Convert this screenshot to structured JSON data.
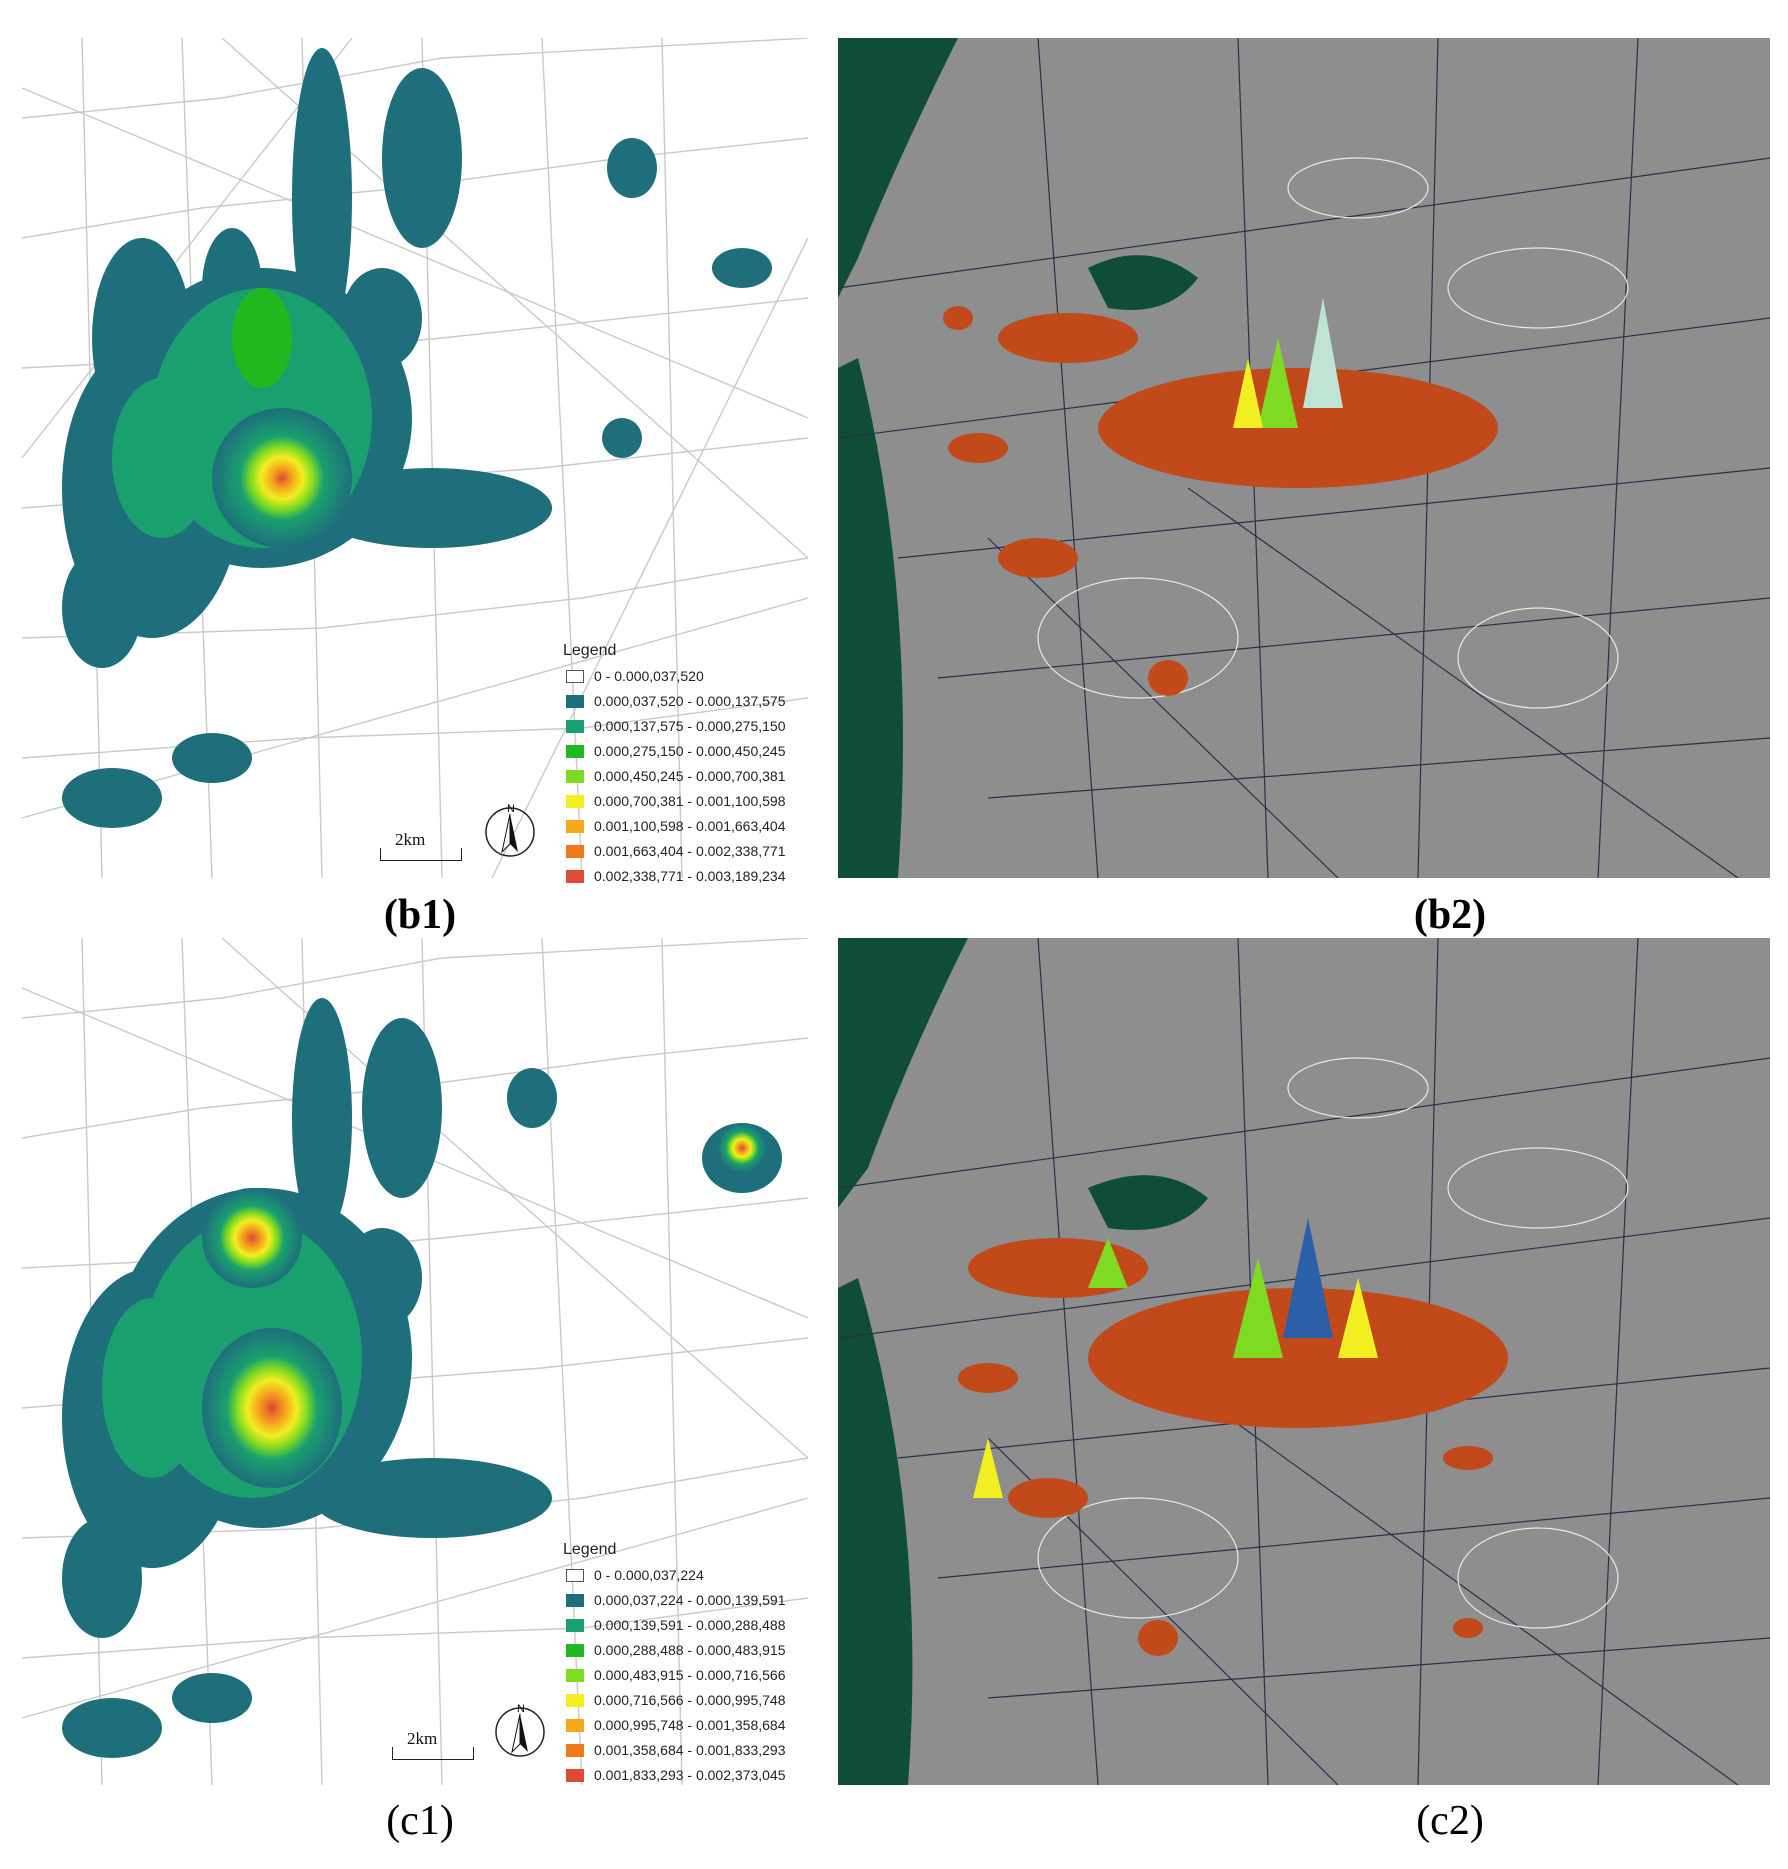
{
  "panels": [
    {
      "caption": "(b1)",
      "legend_title": "Legend",
      "legend": [
        {
          "label": "0 - 0.000,037,520",
          "color": "#ffffff"
        },
        {
          "label": "0.000,037,520  -  0.000,137,575",
          "color": "#1e6e7c"
        },
        {
          "label": "0.000,137,575  -  0.000,275,150",
          "color": "#1aa06e"
        },
        {
          "label": "0.000,275,150  -  0.000,450,245",
          "color": "#22b820"
        },
        {
          "label": "0.000,450,245  -  0.000,700,381",
          "color": "#7fdb22"
        },
        {
          "label": "0.000,700,381  -  0.001,100,598",
          "color": "#f2ee22"
        },
        {
          "label": "0.001,100,598  -  0.001,663,404",
          "color": "#f5a81c"
        },
        {
          "label": "0.001,663,404  -  0.002,338,771",
          "color": "#ef7a1c"
        },
        {
          "label": "0.002,338,771  -  0.003,189,234",
          "color": "#df4a34"
        }
      ],
      "scale_label": "2km",
      "north_label": "N"
    },
    {
      "caption": "(b2)"
    },
    {
      "caption": "(c1)",
      "legend_title": "Legend",
      "legend": [
        {
          "label": "0 - 0.000,037,224",
          "color": "#ffffff"
        },
        {
          "label": "0.000,037,224  -  0.000,139,591",
          "color": "#1e6e7c"
        },
        {
          "label": "0.000,139,591  -  0.000,288,488",
          "color": "#1aa06e"
        },
        {
          "label": "0.000,288,488  -  0.000,483,915",
          "color": "#22b820"
        },
        {
          "label": "0.000,483,915  -  0.000,716,566",
          "color": "#7fdb22"
        },
        {
          "label": "0.000,716,566  -  0.000,995,748",
          "color": "#f2ee22"
        },
        {
          "label": "0.000,995,748  -  0.001,358,684",
          "color": "#f5a81c"
        },
        {
          "label": "0.001,358,684  -  0.001,833,293",
          "color": "#ef7a1c"
        },
        {
          "label": "0.001,833,293  -  0.002,373,045",
          "color": "#df4a34"
        }
      ],
      "scale_label": "2km",
      "north_label": "N"
    },
    {
      "caption": "(c2)"
    }
  ],
  "colors": {
    "road_light": "#c9c9c9",
    "road_dark": "#2b2f4a",
    "water": "#0f4d39",
    "surface": "#8e8e8e",
    "contour": "#e8e8e8"
  }
}
